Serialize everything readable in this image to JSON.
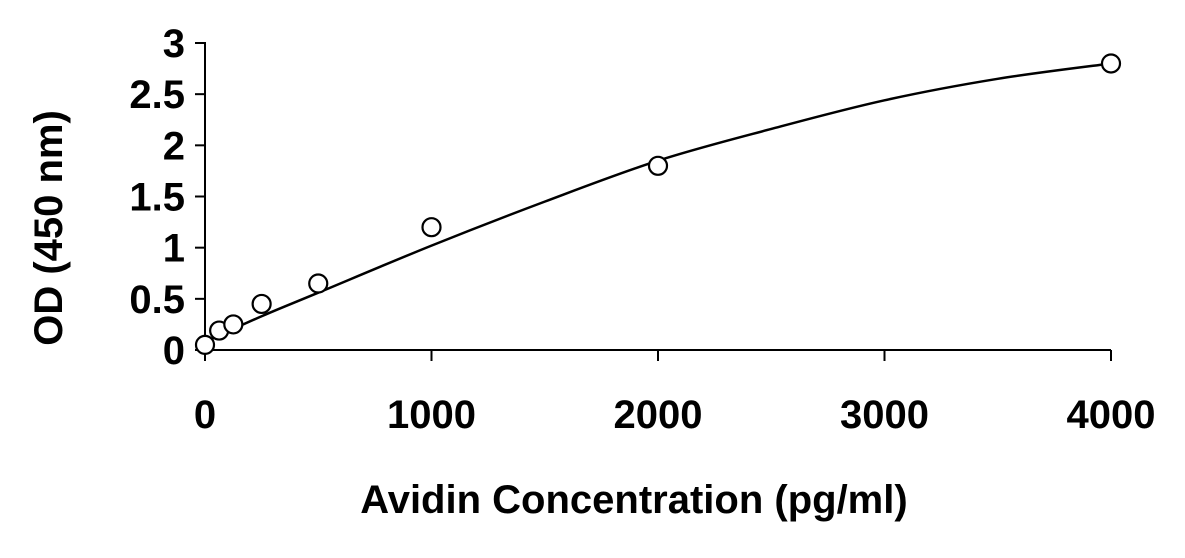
{
  "chart_data": {
    "type": "scatter",
    "title": "",
    "xlabel": "Avidin Concentration (pg/ml)",
    "ylabel": "OD (450 nm)",
    "xlim": [
      0,
      4000
    ],
    "ylim": [
      0,
      3
    ],
    "xticks": [
      0,
      1000,
      2000,
      3000,
      4000
    ],
    "yticks": [
      0,
      0.5,
      1,
      1.5,
      2,
      2.5,
      3
    ],
    "xtick_labels": [
      "0",
      "1000",
      "2000",
      "3000",
      "4000"
    ],
    "ytick_labels": [
      "0",
      "0.5",
      "1",
      "1.5",
      "2",
      "2.5",
      "3"
    ],
    "grid": false,
    "legend": "none",
    "series": [
      {
        "marker": "open-circle",
        "points": [
          {
            "x": 0,
            "y": 0.05
          },
          {
            "x": 62.5,
            "y": 0.19
          },
          {
            "x": 125,
            "y": 0.25
          },
          {
            "x": 250,
            "y": 0.45
          },
          {
            "x": 500,
            "y": 0.65
          },
          {
            "x": 1000,
            "y": 1.2
          },
          {
            "x": 2000,
            "y": 1.8
          },
          {
            "x": 4000,
            "y": 2.8
          }
        ]
      }
    ],
    "fit_curve": {
      "type": "smooth",
      "points": [
        {
          "x": 0,
          "y": 0.08
        },
        {
          "x": 250,
          "y": 0.33
        },
        {
          "x": 500,
          "y": 0.56
        },
        {
          "x": 1000,
          "y": 1.02
        },
        {
          "x": 1500,
          "y": 1.45
        },
        {
          "x": 2000,
          "y": 1.85
        },
        {
          "x": 2500,
          "y": 2.16
        },
        {
          "x": 3000,
          "y": 2.44
        },
        {
          "x": 3500,
          "y": 2.65
        },
        {
          "x": 4000,
          "y": 2.8
        }
      ]
    },
    "colors": {
      "axis": "#000000",
      "marker_stroke": "#000000",
      "marker_fill": "#ffffff",
      "curve": "#000000"
    }
  }
}
